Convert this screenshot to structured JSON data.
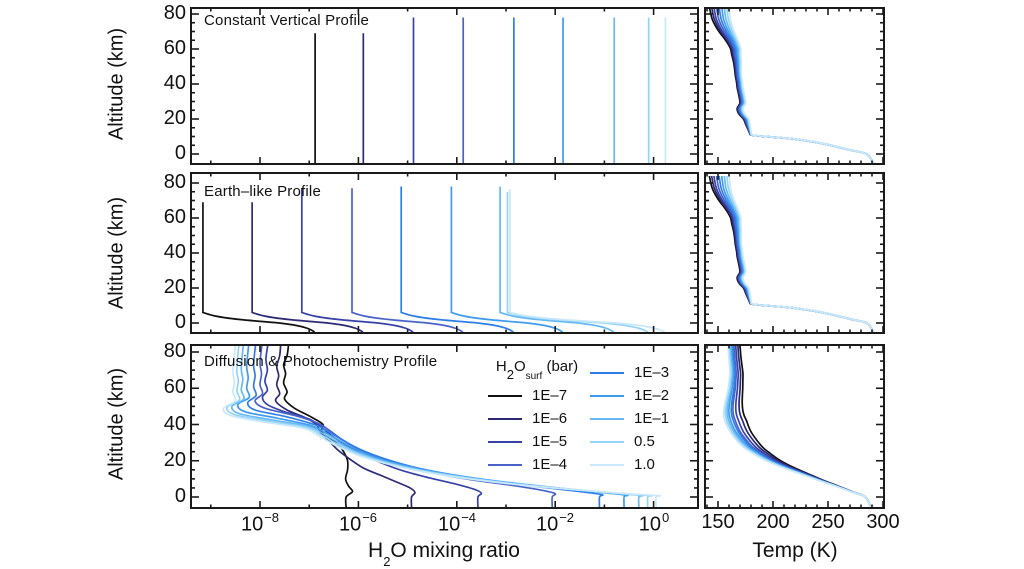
{
  "figure": {
    "background": "#ffffff"
  },
  "labels": {
    "altitude_axis": "Altitude (km)",
    "mixing_label": {
      "h": "H",
      "sub": "2",
      "rest": "O mixing ratio"
    },
    "temp_axis": "Temp (K)"
  },
  "panels": {
    "row_titles": [
      "Constant Vertical Profile",
      "Earth–like Profile",
      "Diffusion & Photochemistry Profile"
    ]
  },
  "legend": {
    "header": {
      "h": "H",
      "sub": "2",
      "o": "O",
      "surf_sub": "surf",
      "rest": " (bar)"
    }
  },
  "chart_data": {
    "type": "line",
    "layout": "3 rows x 2 columns; left column log10 H2O mixing ratio vs altitude, right column temperature vs altitude; legend inside bottom-left panel",
    "row_titles": [
      "Constant Vertical Profile",
      "Earth–like Profile",
      "Diffusion & Photochemistry Profile"
    ],
    "axes": {
      "left_x": {
        "scale": "log10",
        "label": "H2O mixing ratio",
        "tick_exponents": [
          -8,
          -6,
          -4,
          -2,
          0
        ],
        "tick_labels": [
          {
            "b": "10",
            "s": "−8"
          },
          {
            "b": "10",
            "s": "−6"
          },
          {
            "b": "10",
            "s": "−4"
          },
          {
            "b": "10",
            "s": "−2"
          },
          {
            "b": "10",
            "s": "0"
          }
        ],
        "range_log10": [
          -9.4,
          0.9
        ],
        "minor_every_decade": 1
      },
      "right_x": {
        "label": "Temp (K)",
        "ticks": [
          150,
          200,
          250,
          300
        ],
        "tick_labels": [
          "150",
          "200",
          "250",
          "300"
        ],
        "range": [
          138,
          302
        ],
        "minor_step": 10
      },
      "y": {
        "label": "Altitude (km)",
        "ticks": [
          0,
          20,
          40,
          60,
          80
        ],
        "tick_labels": [
          "0",
          "20",
          "40",
          "60",
          "80"
        ],
        "range": [
          -5.7,
          83.5
        ],
        "minor_step": 5
      },
      "grid": false
    },
    "legend": {
      "title": "H2O_surf (bar)",
      "position": "inside bottom-left panel, two columns"
    },
    "series": [
      {
        "label": "1E–7",
        "color": "#111111"
      },
      {
        "label": "1E–6",
        "color": "#2c2a75"
      },
      {
        "label": "1E–5",
        "color": "#3742a8"
      },
      {
        "label": "1E–4",
        "color": "#4a63c8"
      },
      {
        "label": "1E–3",
        "color": "#2e7ee7"
      },
      {
        "label": "1E–2",
        "color": "#3f9bf0"
      },
      {
        "label": "1E–1",
        "color": "#66b9f5"
      },
      {
        "label": "0.5",
        "color": "#96d3f8"
      },
      {
        "label": "1.0",
        "color": "#c9e8fb"
      }
    ],
    "constant_profile": {
      "log10_mixing_ratio": [
        -6.88,
        -5.9,
        -4.88,
        -3.87,
        -2.84,
        -1.84,
        -0.8,
        -0.1,
        0.24
      ],
      "top_altitude_km": [
        69,
        69,
        78,
        78,
        78,
        78,
        78,
        78,
        78
      ]
    },
    "earthlike_profile": {
      "surface_log10": [
        -6.88,
        -5.9,
        -4.88,
        -3.87,
        -2.84,
        -1.84,
        -0.8,
        -0.1,
        0.24
      ],
      "stratosphere_log10": [
        -9.16,
        -8.16,
        -7.15,
        -6.13,
        -5.13,
        -4.11,
        -3.12,
        -2.97,
        -2.92
      ],
      "knee_altitude_km": 6,
      "top_altitude_km": [
        69,
        69,
        77,
        77,
        78,
        78,
        78,
        75,
        76.5
      ],
      "foot_shape": {
        "altitudes_km": [
          6,
          5,
          4,
          3,
          2,
          1,
          0,
          -1.5,
          -3,
          -4.5,
          -5.7
        ],
        "fraction_of_surface_excess": [
          0,
          0.05,
          0.11,
          0.2,
          0.33,
          0.5,
          0.68,
          0.84,
          0.93,
          0.98,
          1
        ]
      }
    },
    "photochem_profile": {
      "points_log10_alt": [
        [
          [
            -6.25,
            -5.7
          ],
          [
            -6.25,
            0
          ],
          [
            -6.12,
            3
          ],
          [
            -6.2,
            6
          ],
          [
            -6.26,
            10
          ],
          [
            -6.22,
            15
          ],
          [
            -6.22,
            20
          ],
          [
            -6.28,
            24
          ],
          [
            -6.38,
            28
          ],
          [
            -6.55,
            32
          ],
          [
            -6.75,
            36
          ],
          [
            -6.72,
            40
          ],
          [
            -6.95,
            44
          ],
          [
            -7.3,
            49
          ],
          [
            -7.5,
            54
          ],
          [
            -7.45,
            58
          ],
          [
            -7.52,
            63
          ],
          [
            -7.48,
            68
          ],
          [
            -7.52,
            73
          ],
          [
            -7.45,
            78
          ],
          [
            -7.42,
            84
          ]
        ],
        [
          [
            -4.92,
            -5.7
          ],
          [
            -4.92,
            0
          ],
          [
            -4.85,
            2.5
          ],
          [
            -4.95,
            5
          ],
          [
            -5.2,
            8
          ],
          [
            -5.55,
            12
          ],
          [
            -5.9,
            16
          ],
          [
            -6.18,
            21
          ],
          [
            -6.42,
            26
          ],
          [
            -6.6,
            31
          ],
          [
            -6.78,
            36
          ],
          [
            -6.85,
            40
          ],
          [
            -7.1,
            44
          ],
          [
            -7.45,
            48
          ],
          [
            -7.68,
            53
          ],
          [
            -7.6,
            57
          ],
          [
            -7.66,
            62
          ],
          [
            -7.62,
            67
          ],
          [
            -7.66,
            72
          ],
          [
            -7.6,
            78
          ],
          [
            -7.58,
            84
          ]
        ],
        [
          [
            -3.57,
            -5.7
          ],
          [
            -3.57,
            0
          ],
          [
            -3.5,
            2
          ],
          [
            -3.62,
            4
          ],
          [
            -4.0,
            7
          ],
          [
            -4.55,
            10.5
          ],
          [
            -5.1,
            14.5
          ],
          [
            -5.55,
            19
          ],
          [
            -5.95,
            24
          ],
          [
            -6.28,
            29
          ],
          [
            -6.55,
            34
          ],
          [
            -6.75,
            38.5
          ],
          [
            -7.0,
            43
          ],
          [
            -7.5,
            47
          ],
          [
            -7.85,
            51
          ],
          [
            -7.95,
            55
          ],
          [
            -7.85,
            59
          ],
          [
            -7.9,
            64
          ],
          [
            -7.85,
            70
          ],
          [
            -7.88,
            76
          ],
          [
            -7.84,
            84
          ]
        ],
        [
          [
            -2.06,
            -5.7
          ],
          [
            -2.06,
            0
          ],
          [
            -2.0,
            1.8
          ],
          [
            -2.25,
            3.6
          ],
          [
            -2.9,
            6.5
          ],
          [
            -3.7,
            9.5
          ],
          [
            -4.45,
            13
          ],
          [
            -5.1,
            17
          ],
          [
            -5.6,
            21.5
          ],
          [
            -6.0,
            26.5
          ],
          [
            -6.35,
            32
          ],
          [
            -6.6,
            37
          ],
          [
            -6.85,
            41
          ],
          [
            -7.3,
            45
          ],
          [
            -7.9,
            49
          ],
          [
            -8.1,
            53
          ],
          [
            -7.95,
            57
          ],
          [
            -8.0,
            62
          ],
          [
            -7.97,
            68
          ],
          [
            -8.0,
            74
          ],
          [
            -7.96,
            84
          ]
        ],
        [
          [
            -1.1,
            -5.7
          ],
          [
            -1.1,
            0
          ],
          [
            -1.05,
            1.3
          ],
          [
            -1.5,
            3
          ],
          [
            -2.3,
            5.5
          ],
          [
            -3.2,
            8.5
          ],
          [
            -4.05,
            12
          ],
          [
            -4.8,
            16
          ],
          [
            -5.4,
            20.5
          ],
          [
            -5.9,
            25.5
          ],
          [
            -6.3,
            31
          ],
          [
            -6.6,
            36
          ],
          [
            -6.9,
            40
          ],
          [
            -7.5,
            44.5
          ],
          [
            -8.1,
            48
          ],
          [
            -8.25,
            52
          ],
          [
            -8.08,
            56
          ],
          [
            -8.13,
            61
          ],
          [
            -8.1,
            67
          ],
          [
            -8.13,
            73
          ],
          [
            -8.09,
            84
          ]
        ],
        [
          [
            -0.6,
            -5.7
          ],
          [
            -0.6,
            0
          ],
          [
            -0.55,
            1
          ],
          [
            -1.05,
            2.5
          ],
          [
            -1.95,
            5
          ],
          [
            -2.95,
            8
          ],
          [
            -3.9,
            11.5
          ],
          [
            -4.75,
            15.5
          ],
          [
            -5.45,
            20
          ],
          [
            -5.95,
            25
          ],
          [
            -6.35,
            30.5
          ],
          [
            -6.67,
            35.5
          ],
          [
            -6.97,
            39.5
          ],
          [
            -7.65,
            43.5
          ],
          [
            -8.3,
            47
          ],
          [
            -8.45,
            51
          ],
          [
            -8.22,
            55
          ],
          [
            -8.27,
            60
          ],
          [
            -8.24,
            66
          ],
          [
            -8.27,
            72
          ],
          [
            -8.23,
            84
          ]
        ],
        [
          [
            -0.3,
            -5.7
          ],
          [
            -0.3,
            0
          ],
          [
            -0.25,
            0.9
          ],
          [
            -0.85,
            2.2
          ],
          [
            -1.8,
            4.6
          ],
          [
            -2.85,
            7.5
          ],
          [
            -3.85,
            11
          ],
          [
            -4.75,
            15
          ],
          [
            -5.45,
            19.5
          ],
          [
            -6.0,
            24.5
          ],
          [
            -6.4,
            30
          ],
          [
            -6.72,
            35
          ],
          [
            -7.02,
            39
          ],
          [
            -7.75,
            42.5
          ],
          [
            -8.42,
            46
          ],
          [
            -8.57,
            50
          ],
          [
            -8.33,
            54
          ],
          [
            -8.38,
            59
          ],
          [
            -8.35,
            65
          ],
          [
            -8.38,
            71
          ],
          [
            -8.34,
            84
          ]
        ],
        [
          [
            -0.12,
            -5.7
          ],
          [
            -0.12,
            0
          ],
          [
            -0.07,
            0.8
          ],
          [
            -0.7,
            2
          ],
          [
            -1.65,
            4.2
          ],
          [
            -2.75,
            7
          ],
          [
            -3.8,
            10.5
          ],
          [
            -4.72,
            14.5
          ],
          [
            -5.45,
            19
          ],
          [
            -6.02,
            24
          ],
          [
            -6.45,
            29.5
          ],
          [
            -6.77,
            34.5
          ],
          [
            -7.07,
            38.5
          ],
          [
            -7.85,
            42
          ],
          [
            -8.52,
            45.5
          ],
          [
            -8.67,
            49.5
          ],
          [
            -8.42,
            53.5
          ],
          [
            -8.47,
            58.5
          ],
          [
            -8.44,
            64
          ],
          [
            -8.47,
            70
          ],
          [
            -8.43,
            84
          ]
        ],
        [
          [
            0.05,
            -5.7
          ],
          [
            0.05,
            0
          ],
          [
            0.1,
            0.7
          ],
          [
            -0.55,
            1.8
          ],
          [
            -1.5,
            3.8
          ],
          [
            -2.65,
            6.5
          ],
          [
            -3.75,
            10
          ],
          [
            -4.7,
            14
          ],
          [
            -5.45,
            18.5
          ],
          [
            -6.05,
            23.5
          ],
          [
            -6.5,
            29
          ],
          [
            -6.82,
            34
          ],
          [
            -7.12,
            38
          ],
          [
            -7.95,
            41.5
          ],
          [
            -8.6,
            45
          ],
          [
            -8.74,
            49
          ],
          [
            -8.5,
            53
          ],
          [
            -8.55,
            58
          ],
          [
            -8.52,
            63.5
          ],
          [
            -8.55,
            69.5
          ],
          [
            -8.5,
            84
          ]
        ]
      ]
    },
    "temperature": {
      "rows_1_and_2": {
        "altitudes_km": [
          -5.7,
          0,
          2,
          4,
          6,
          8,
          9,
          10,
          10.8,
          12,
          14,
          17,
          20,
          23,
          26,
          29,
          32,
          35,
          38,
          41,
          45,
          49,
          53,
          57,
          60,
          63,
          66,
          69,
          72,
          75,
          78,
          84
        ],
        "base_K": [
          292,
          285,
          272,
          259,
          245,
          226,
          213,
          193,
          181,
          179.5,
          178.5,
          177,
          175.5,
          171.5,
          170,
          172.5,
          172,
          171,
          170,
          169.5,
          168.5,
          168,
          167.5,
          166.5,
          166,
          164,
          161.5,
          158.5,
          156,
          154,
          152.5,
          151
        ],
        "spread_weight": [
          [
            -5.7,
            0
          ],
          [
            0,
            0
          ],
          [
            8,
            0.1
          ],
          [
            10.8,
            0.2
          ],
          [
            14,
            0.45
          ],
          [
            18,
            0.8
          ],
          [
            22,
            1
          ],
          [
            30,
            1
          ],
          [
            40,
            1
          ],
          [
            48,
            1.1
          ],
          [
            56,
            1.5
          ],
          [
            64,
            2
          ],
          [
            70,
            2.6
          ],
          [
            76,
            3.1
          ],
          [
            84,
            3.4
          ]
        ],
        "series_offset_K": [
          -2.6,
          -2,
          -1.4,
          -0.7,
          0,
          0.7,
          1.4,
          2.1,
          2.7
        ]
      },
      "row_3": {
        "altitudes_km": [
          -5.7,
          0,
          3,
          6,
          9,
          12,
          15,
          18,
          21,
          24,
          27,
          30,
          33,
          36,
          39,
          42,
          45,
          48,
          52,
          56,
          60,
          64,
          68,
          72,
          78,
          84
        ],
        "base_K": [
          289,
          284,
          271,
          258,
          244,
          231,
          218,
          206,
          196,
          188,
          181,
          176,
          172,
          168.5,
          166,
          164,
          162.5,
          162,
          162.5,
          163.5,
          164.5,
          165,
          165.5,
          165,
          164,
          163.5
        ],
        "spread_weight": [
          [
            -5.7,
            0
          ],
          [
            0,
            0
          ],
          [
            5,
            0.1
          ],
          [
            10,
            0.3
          ],
          [
            15,
            0.55
          ],
          [
            20,
            0.8
          ],
          [
            25,
            1
          ],
          [
            30,
            1.1
          ],
          [
            36,
            1.15
          ],
          [
            42,
            1.2
          ],
          [
            48,
            1.05
          ],
          [
            54,
            0.9
          ],
          [
            60,
            0.8
          ],
          [
            70,
            0.7
          ],
          [
            84,
            0.65
          ]
        ],
        "series_offset_K": [
          10,
          7,
          4,
          1.5,
          0,
          -2,
          -3.5,
          -5,
          -6.5
        ]
      }
    }
  }
}
